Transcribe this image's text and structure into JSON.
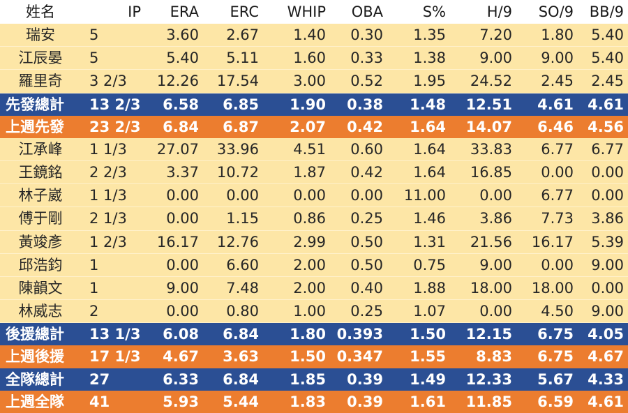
{
  "headers": [
    "姓名",
    "IP",
    "ERA",
    "ERC",
    "WHIP",
    "OBA",
    "S%",
    "H/9",
    "SO/9",
    "BB/9"
  ],
  "rows": [
    {
      "kind": "player",
      "cells": [
        "瑞安",
        "5",
        "3.60",
        "2.67",
        "1.40",
        "0.30",
        "1.35",
        "7.20",
        "1.80",
        "5.40"
      ]
    },
    {
      "kind": "player",
      "cells": [
        "江辰晏",
        "5",
        "5.40",
        "5.11",
        "1.60",
        "0.33",
        "1.38",
        "9.00",
        "9.00",
        "5.40"
      ]
    },
    {
      "kind": "player",
      "cells": [
        "羅里奇",
        "3 2/3",
        "12.26",
        "17.54",
        "3.00",
        "0.52",
        "1.95",
        "24.52",
        "2.45",
        "2.45"
      ]
    },
    {
      "kind": "total",
      "cells": [
        "先發總計",
        "13 2/3",
        "6.58",
        "6.85",
        "1.90",
        "0.38",
        "1.48",
        "12.51",
        "4.61",
        "4.61"
      ]
    },
    {
      "kind": "prev",
      "cells": [
        "上週先發",
        "23 2/3",
        "6.84",
        "6.87",
        "2.07",
        "0.42",
        "1.64",
        "14.07",
        "6.46",
        "4.56"
      ]
    },
    {
      "kind": "player",
      "cells": [
        "江承峰",
        "1 1/3",
        "27.07",
        "33.96",
        "4.51",
        "0.60",
        "1.64",
        "33.83",
        "6.77",
        "6.77"
      ]
    },
    {
      "kind": "player",
      "cells": [
        "王鏡銘",
        "2 2/3",
        "3.37",
        "10.72",
        "1.87",
        "0.42",
        "1.64",
        "16.85",
        "0.00",
        "0.00"
      ]
    },
    {
      "kind": "player",
      "cells": [
        "林子崴",
        "1 1/3",
        "0.00",
        "0.00",
        "0.00",
        "0.00",
        "11.00",
        "0.00",
        "6.77",
        "0.00"
      ]
    },
    {
      "kind": "player",
      "cells": [
        "傅于剛",
        "2 1/3",
        "0.00",
        "1.15",
        "0.86",
        "0.25",
        "1.46",
        "3.86",
        "7.73",
        "3.86"
      ]
    },
    {
      "kind": "player",
      "cells": [
        "黃竣彥",
        "1 2/3",
        "16.17",
        "12.76",
        "2.99",
        "0.50",
        "1.31",
        "21.56",
        "16.17",
        "5.39"
      ]
    },
    {
      "kind": "player",
      "cells": [
        "邱浩鈞",
        "1",
        "0.00",
        "6.60",
        "2.00",
        "0.50",
        "0.75",
        "9.00",
        "0.00",
        "9.00"
      ]
    },
    {
      "kind": "player",
      "cells": [
        "陳韻文",
        "1",
        "9.00",
        "7.48",
        "2.00",
        "0.40",
        "1.88",
        "18.00",
        "18.00",
        "0.00"
      ]
    },
    {
      "kind": "player",
      "cells": [
        "林威志",
        "2",
        "0.00",
        "0.80",
        "1.00",
        "0.25",
        "1.07",
        "0.00",
        "4.50",
        "9.00"
      ]
    },
    {
      "kind": "total",
      "cells": [
        "後援總計",
        "13 1/3",
        "6.08",
        "6.84",
        "1.80",
        "0.393",
        "1.50",
        "12.15",
        "6.75",
        "4.05"
      ]
    },
    {
      "kind": "prev",
      "cells": [
        "上週後援",
        "17 1/3",
        "4.67",
        "3.63",
        "1.50",
        "0.347",
        "1.55",
        "8.83",
        "6.75",
        "4.67"
      ]
    },
    {
      "kind": "total",
      "cells": [
        "全隊總計",
        "27",
        "6.33",
        "6.84",
        "1.85",
        "0.39",
        "1.49",
        "12.33",
        "5.67",
        "4.33"
      ]
    },
    {
      "kind": "prev",
      "cells": [
        "上週全隊",
        "41",
        "5.93",
        "5.44",
        "1.83",
        "0.39",
        "1.61",
        "11.85",
        "6.59",
        "4.61"
      ]
    }
  ],
  "colors": {
    "player_bg": "#fde6a6",
    "total_bg": "#2b4f94",
    "prev_week_bg": "#ec7d2f",
    "header_bg": "#ffffff"
  }
}
